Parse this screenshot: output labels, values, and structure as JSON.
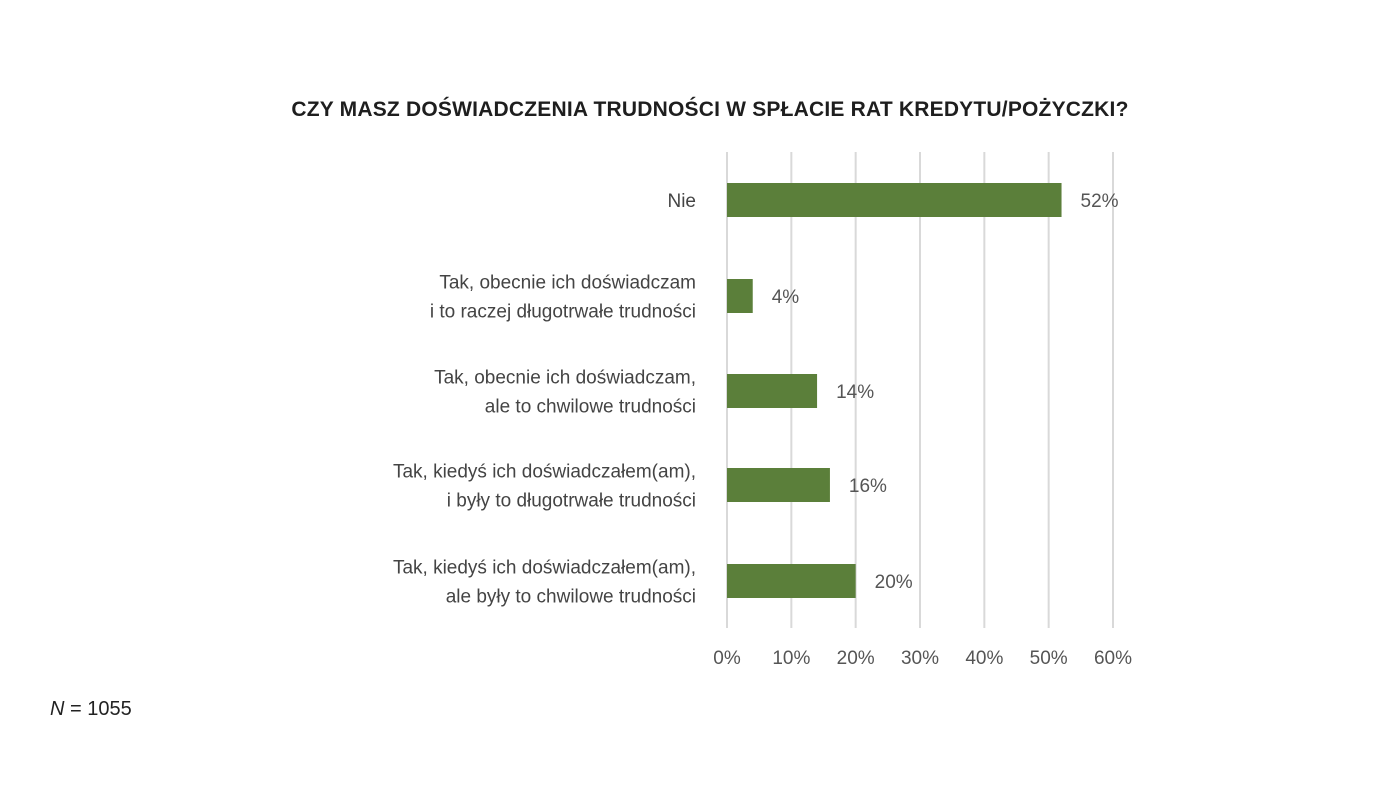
{
  "chart_data": {
    "type": "bar",
    "orientation": "horizontal",
    "title": "CZY MASZ DOŚWIADCZENIA TRUDNOŚCI W SPŁACIE RAT KREDYTU/POŻYCZKI?",
    "categories": [
      [
        "Nie"
      ],
      [
        "Tak, obecnie ich doświadczam",
        "i to raczej długotrwałe trudności"
      ],
      [
        "Tak, obecnie ich doświadczam,",
        "ale to chwilowe trudności"
      ],
      [
        "Tak, kiedyś ich doświadczałem(am),",
        "i były to długotrwałe trudności"
      ],
      [
        "Tak, kiedyś ich doświadczałem(am),",
        "ale były to chwilowe trudności"
      ]
    ],
    "values": [
      52,
      4,
      14,
      16,
      20
    ],
    "value_labels": [
      "52%",
      "4%",
      "14%",
      "16%",
      "20%"
    ],
    "xlim": [
      0,
      60
    ],
    "xticks": [
      0,
      10,
      20,
      30,
      40,
      50,
      60
    ],
    "xtick_labels": [
      "0%",
      "10%",
      "20%",
      "30%",
      "40%",
      "50%",
      "60%"
    ],
    "bar_color": "#5b7f3a",
    "grid": true,
    "legend": "none"
  },
  "footnote": {
    "symbol": "N",
    "text": " = 1055"
  }
}
